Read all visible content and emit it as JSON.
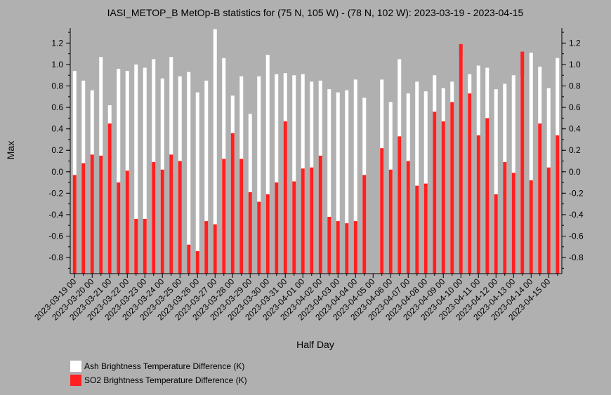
{
  "chart_data": {
    "type": "bar",
    "title": "IASI_METOP_B MetOp-B statistics for (75 N, 105 W) - (78 N, 102 W): 2023-03-19 - 2023-04-15",
    "xlabel": "Half Day",
    "ylabel": "Max",
    "ylim": [
      -0.95,
      1.34
    ],
    "y_ticks": [
      -0.8,
      -0.6,
      -0.4,
      -0.2,
      0.0,
      0.2,
      0.4,
      0.6,
      0.8,
      1.0,
      1.2
    ],
    "y_tick_labels": [
      "-0.8",
      "-0.6",
      "-0.4",
      "-0.2",
      "0.0",
      "0.2",
      "0.4",
      "0.6",
      "0.8",
      "1.0",
      "1.2"
    ],
    "x_tick_labels": [
      "2023-03-19 00",
      "2023-03-20 00",
      "2023-03-21 00",
      "2023-03-22 00",
      "2023-03-23 00",
      "2023-03-24 00",
      "2023-03-25 00",
      "2023-03-26 00",
      "2023-03-27 00",
      "2023-03-28 00",
      "2023-03-29 00",
      "2023-03-30 00",
      "2023-03-31 00",
      "2023-04-01 00",
      "2023-04-02 00",
      "2023-04-03 00",
      "2023-04-04 00",
      "2023-04-05 00",
      "2023-04-06 00",
      "2023-04-07 00",
      "2023-04-08 00",
      "2023-04-09 00",
      "2023-04-10 00",
      "2023-04-11 00",
      "2023-04-12 00",
      "2023-04-13 00",
      "2023-04-14 00",
      "2023-04-15 00"
    ],
    "legend_position": "bottom-left",
    "series": [
      {
        "name": "Ash Brightness Temperature Difference (K)",
        "color": "#ffffff",
        "values": [
          0.94,
          0.85,
          0.76,
          1.07,
          0.62,
          0.96,
          0.94,
          1.0,
          0.97,
          1.05,
          0.87,
          1.07,
          0.89,
          0.93,
          0.74,
          0.85,
          1.33,
          1.06,
          0.71,
          0.89,
          0.54,
          0.89,
          1.09,
          0.91,
          0.92,
          0.9,
          0.91,
          0.84,
          0.85,
          0.77,
          0.74,
          0.76,
          0.86,
          0.69,
          null,
          0.86,
          0.65,
          1.05,
          0.73,
          0.84,
          0.75,
          0.9,
          0.78,
          0.84,
          1.07,
          0.91,
          0.99,
          0.97,
          0.77,
          0.82,
          0.9,
          0.9,
          1.11,
          0.98,
          0.78,
          1.06
        ]
      },
      {
        "name": "SO2 Brightness Temperature Difference (K)",
        "color": "#ff2020",
        "values": [
          -0.03,
          0.08,
          0.16,
          0.15,
          0.45,
          -0.1,
          0.01,
          -0.44,
          -0.44,
          0.09,
          0.02,
          0.16,
          0.1,
          -0.68,
          -0.74,
          -0.46,
          -0.49,
          0.12,
          0.36,
          0.12,
          -0.19,
          -0.28,
          -0.21,
          -0.1,
          0.47,
          -0.09,
          0.03,
          0.04,
          0.15,
          -0.42,
          -0.46,
          -0.48,
          -0.46,
          -0.03,
          null,
          0.22,
          0.02,
          0.33,
          0.1,
          -0.13,
          -0.11,
          0.56,
          0.47,
          0.65,
          1.19,
          0.73,
          0.34,
          0.5,
          -0.21,
          0.09,
          -0.01,
          1.12,
          -0.08,
          0.45,
          0.04,
          0.34
        ]
      }
    ]
  }
}
